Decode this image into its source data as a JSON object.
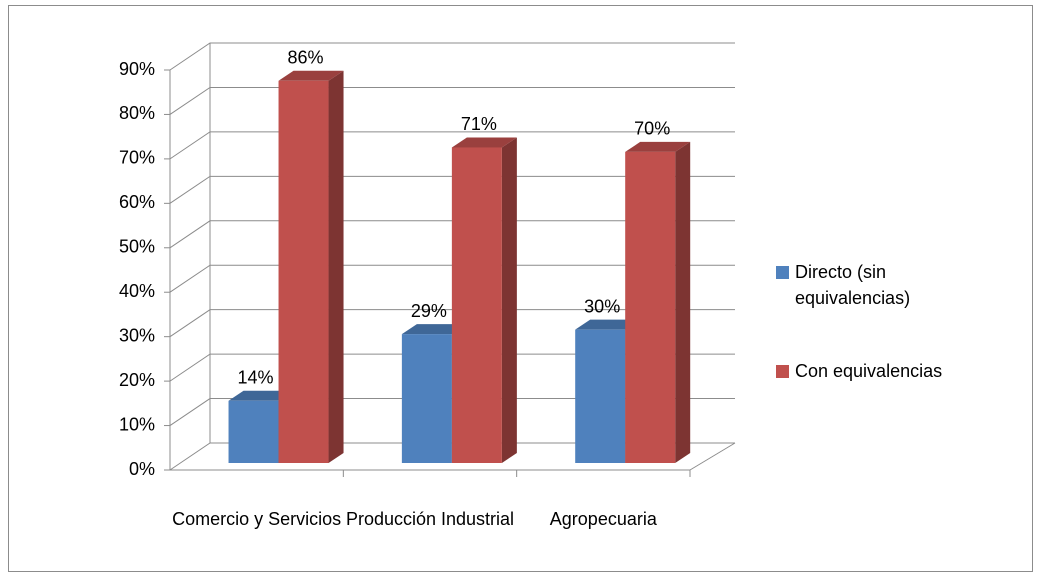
{
  "chart_data": {
    "type": "bar",
    "categories": [
      "Comercio y Servicios",
      "Producción Industrial",
      "Agropecuaria"
    ],
    "series": [
      {
        "name": "Directo (sin equivalencias)",
        "color": "#4f81bd",
        "values": [
          14,
          29,
          30
        ],
        "value_labels": [
          "14%",
          "29%",
          "30%"
        ]
      },
      {
        "name": "Con equivalencias",
        "color": "#c0504d",
        "values": [
          86,
          71,
          70
        ],
        "value_labels": [
          "86%",
          "71%",
          "70%"
        ]
      }
    ],
    "ylim": [
      0,
      90
    ],
    "yticks": [
      {
        "value": 0,
        "label": "0%"
      },
      {
        "value": 10,
        "label": "10%"
      },
      {
        "value": 20,
        "label": "20%"
      },
      {
        "value": 30,
        "label": "30%"
      },
      {
        "value": 40,
        "label": "40%"
      },
      {
        "value": 50,
        "label": "50%"
      },
      {
        "value": 60,
        "label": "60%"
      },
      {
        "value": 70,
        "label": "70%"
      },
      {
        "value": 80,
        "label": "80%"
      },
      {
        "value": 90,
        "label": "90%"
      }
    ],
    "grid": true,
    "legend": "right"
  }
}
